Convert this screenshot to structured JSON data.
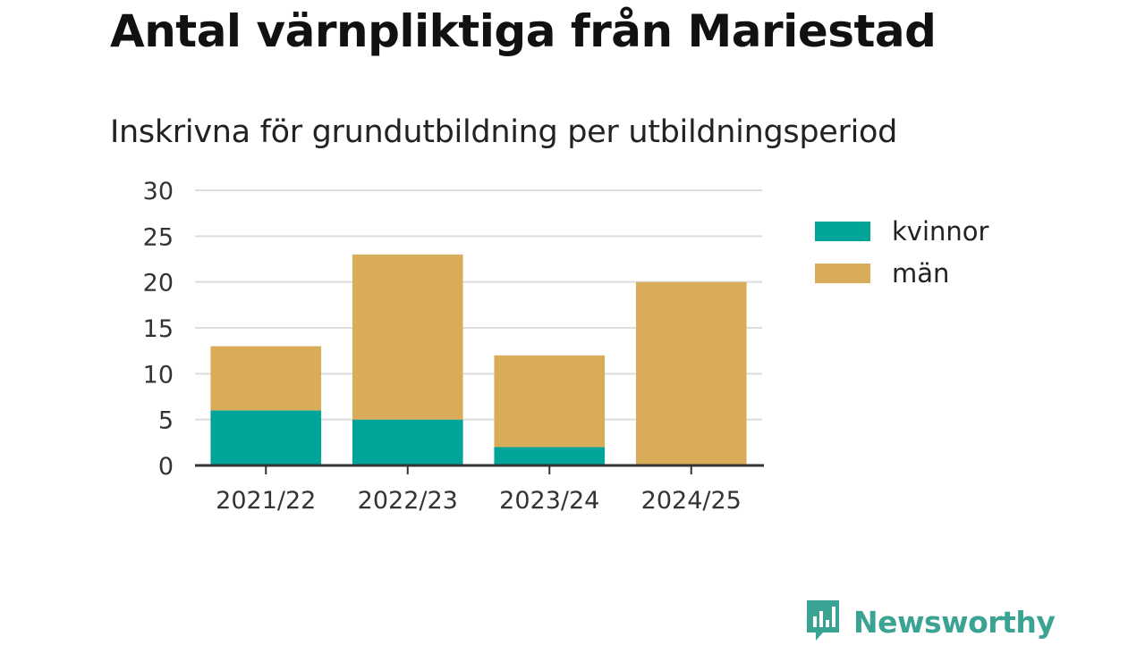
{
  "title": "Antal värnpliktiga från Mariestad",
  "subtitle": "Inskrivna för grundutbildning per utbildningsperiod",
  "brand": {
    "name": "Newsworthy",
    "icon": "bar-chart-speech-bubble-icon",
    "color": "#3aa394"
  },
  "chart_data": {
    "type": "bar",
    "stacked": true,
    "categories": [
      "2021/22",
      "2022/23",
      "2023/24",
      "2024/25"
    ],
    "series": [
      {
        "name": "kvinnor",
        "color": "#00a499",
        "values": [
          6,
          5,
          2,
          0
        ]
      },
      {
        "name": "män",
        "color": "#d9ac5a",
        "values": [
          7,
          18,
          10,
          20
        ]
      }
    ],
    "ylim": [
      0,
      30
    ],
    "yticks": [
      "0",
      "5",
      "10",
      "15",
      "20",
      "25",
      "30"
    ],
    "grid": true,
    "legend_position": "right"
  }
}
